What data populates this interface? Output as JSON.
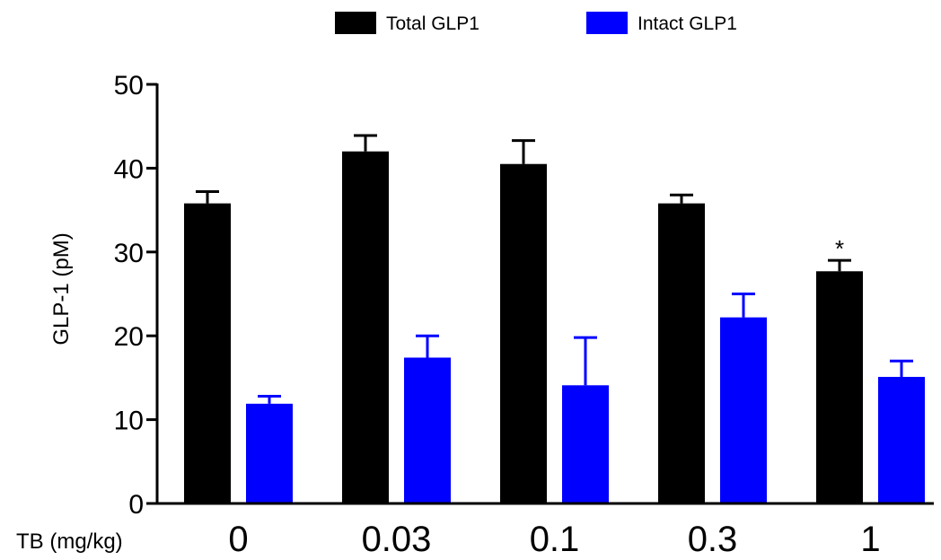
{
  "chart_data": {
    "type": "bar",
    "categories": [
      "0",
      "0.03",
      "0.1",
      "0.3",
      "1"
    ],
    "xlabel": "TB (mg/kg)",
    "ylabel": "GLP-1 (pM)",
    "ylim": [
      0,
      50
    ],
    "yticks": [
      0,
      10,
      20,
      30,
      40,
      50
    ],
    "legend_position": "top-center",
    "grid": false,
    "series": [
      {
        "name": "Total GLP1",
        "color": "#000000",
        "values": [
          35.8,
          42.0,
          40.5,
          35.8,
          27.7
        ],
        "errors": [
          1.4,
          1.9,
          2.8,
          1.0,
          1.3
        ],
        "annotations": [
          "",
          "",
          "",
          "",
          "*"
        ]
      },
      {
        "name": "Intact GLP1",
        "color": "#0000ff",
        "values": [
          11.9,
          17.4,
          14.1,
          22.2,
          15.1
        ],
        "errors": [
          0.9,
          2.6,
          5.7,
          2.8,
          1.9
        ],
        "annotations": [
          "",
          "",
          "",
          "",
          ""
        ]
      }
    ]
  }
}
